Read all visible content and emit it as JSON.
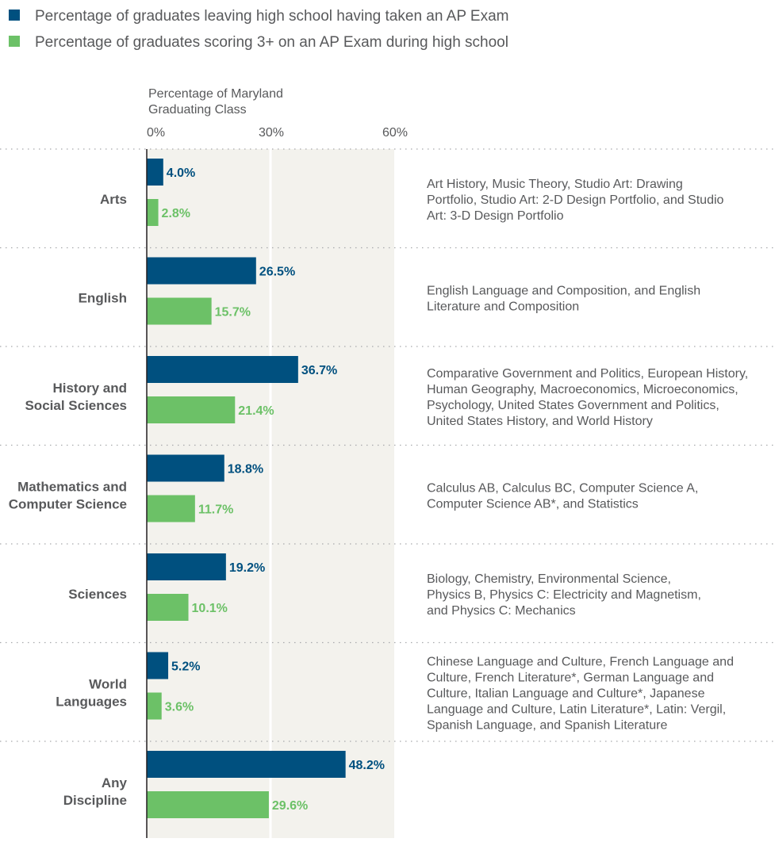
{
  "legend": {
    "items": [
      {
        "label": "Percentage of graduates leaving high school having taken an AP Exam",
        "color": "#00507f"
      },
      {
        "label": "Percentage of graduates scoring 3+ on an AP Exam during high school",
        "color": "#6cc167"
      }
    ]
  },
  "axis": {
    "title_lines": [
      "Percentage of Maryland",
      "Graduating Class"
    ]
  },
  "colors": {
    "taken": "#00507f",
    "scored": "#6cc167",
    "plot_band": "#f3f2ed",
    "category_text": "#58595b",
    "note_text": "#58595b",
    "divider": "#a7a9ac"
  },
  "chart_data": {
    "type": "bar",
    "orientation": "horizontal",
    "xlim": [
      0,
      60
    ],
    "x_ticks": [
      "0%",
      "30%",
      "60%"
    ],
    "x_tick_values": [
      0,
      30,
      60
    ],
    "grid": true,
    "legend_position": "top-left",
    "categories": [
      {
        "lines": [
          "Arts"
        ],
        "notes": [
          "Art History, Music Theory, Studio Art: Drawing",
          "Portfolio, Studio Art: 2-D Design Portfolio, and Studio",
          "Art: 3-D Design Portfolio"
        ]
      },
      {
        "lines": [
          "English"
        ],
        "notes": [
          "English Language and Composition, and English",
          "Literature and Composition"
        ]
      },
      {
        "lines": [
          "History and",
          "Social Sciences"
        ],
        "notes": [
          "Comparative Government and Politics, European History,",
          "Human Geography, Macroeconomics, Microeconomics,",
          "Psychology, United States Government and Politics,",
          "United States History, and World History"
        ]
      },
      {
        "lines": [
          "Mathematics and",
          "Computer Science"
        ],
        "notes": [
          "Calculus AB, Calculus BC, Computer Science A,",
          "Computer Science AB*, and Statistics"
        ]
      },
      {
        "lines": [
          "Sciences"
        ],
        "notes": [
          "Biology, Chemistry, Environmental Science,",
          "Physics B, Physics C: Electricity and Magnetism,",
          "and Physics C: Mechanics"
        ]
      },
      {
        "lines": [
          "World",
          "Languages"
        ],
        "notes": [
          "Chinese Language and Culture, French Language and",
          "Culture, French Literature*, German Language and",
          "Culture, Italian Language and Culture*, Japanese",
          "Language and Culture, Latin Literature*, Latin: Vergil,",
          "Spanish Language, and Spanish Literature"
        ]
      },
      {
        "lines": [
          "Any",
          "Discipline"
        ],
        "notes": []
      }
    ],
    "series": [
      {
        "name": "Percentage of graduates leaving high school having taken an AP Exam",
        "values": [
          4.0,
          26.5,
          36.7,
          18.8,
          19.2,
          5.2,
          48.2
        ],
        "labels": [
          "4.0%",
          "26.5%",
          "36.7%",
          "18.8%",
          "19.2%",
          "5.2%",
          "48.2%"
        ]
      },
      {
        "name": "Percentage of graduates scoring 3+ on an AP Exam during high school",
        "values": [
          2.8,
          15.7,
          21.4,
          11.7,
          10.1,
          3.6,
          29.6
        ],
        "labels": [
          "2.8%",
          "15.7%",
          "21.4%",
          "11.7%",
          "10.1%",
          "3.6%",
          "29.6%"
        ]
      }
    ]
  }
}
